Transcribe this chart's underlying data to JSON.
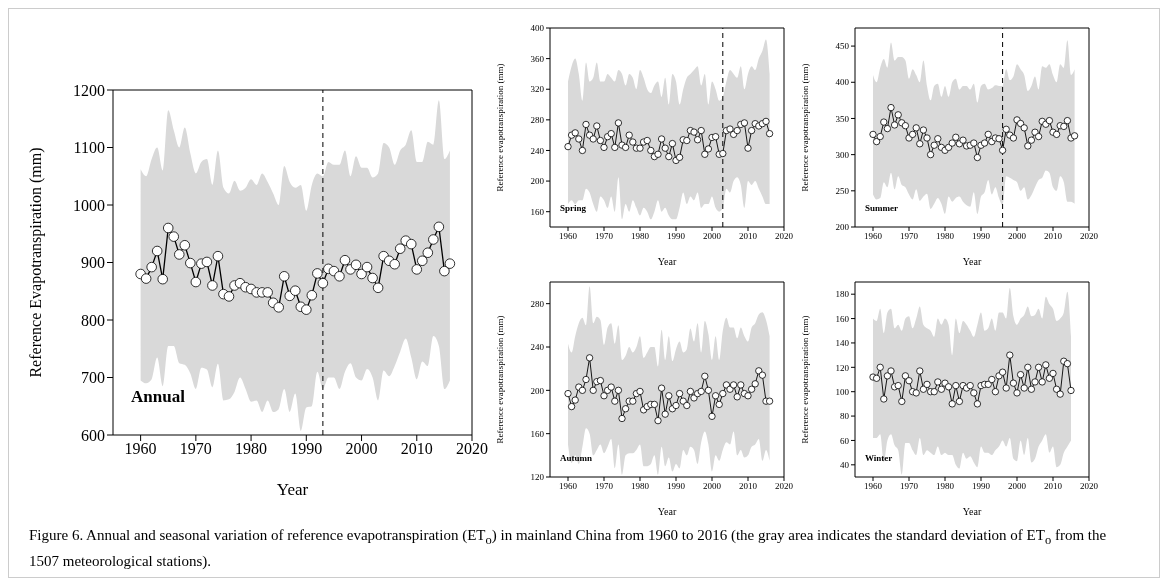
{
  "chart_data": [
    {
      "type": "line",
      "xlabel": "Year",
      "ylabel": "Reference Evapotranspiration (mm)",
      "xlim": [
        1955,
        2020
      ],
      "xticks": [
        1960,
        1970,
        1980,
        1990,
        2000,
        2010,
        2020
      ],
      "ylim": [
        600,
        1200
      ],
      "yticks": [
        600,
        700,
        800,
        900,
        1000,
        1100,
        1200
      ],
      "marker": "circle",
      "line_style": "solid",
      "annotations": [
        "Annual",
        "Figure 6. Annual and seasonal variation of reference evapotranspiration (ET$_{o}$) in mainland China from 1960 to 2016 (the gray area indicates the standard deviation of ET$_{o}$ from the 1507 meteorological stations)."
      ],
      "ref_lines": [
        {
          "axis": "x",
          "value": 1993,
          "line_style": "dashed",
          "color": "#000000"
        }
      ],
      "x": [
        1960,
        1961,
        1962,
        1963,
        1964,
        1965,
        1966,
        1967,
        1968,
        1969,
        1970,
        1971,
        1972,
        1973,
        1974,
        1975,
        1976,
        1977,
        1978,
        1979,
        1980,
        1981,
        1982,
        1983,
        1984,
        1985,
        1986,
        1987,
        1988,
        1989,
        1990,
        1991,
        1992,
        1993,
        1994,
        1995,
        1996,
        1997,
        1998,
        1999,
        2000,
        2001,
        2002,
        2003,
        2004,
        2005,
        2006,
        2007,
        2008,
        2009,
        2010,
        2011,
        2012,
        2013,
        2014,
        2015,
        2016
      ],
      "series": [
        {
          "color": "#000000",
          "values": [
            880,
            872,
            892,
            920,
            871,
            960,
            945,
            914,
            930,
            899,
            866,
            898,
            901,
            860,
            911,
            845,
            841,
            860,
            864,
            857,
            854,
            848,
            848,
            848,
            830,
            822,
            876,
            842,
            851,
            823,
            818,
            843,
            881,
            864,
            889,
            885,
            876,
            904,
            888,
            896,
            880,
            892,
            873,
            856,
            911,
            903,
            897,
            924,
            938,
            932,
            888,
            903,
            917,
            940,
            962,
            885,
            898
          ],
          "upper": [
            1062,
            1050,
            1080,
            1100,
            1060,
            1165,
            1130,
            1100,
            1135,
            1090,
            1055,
            1075,
            1080,
            1035,
            1095,
            1030,
            1020,
            1042,
            1025,
            1030,
            1045,
            1035,
            1055,
            1040,
            1020,
            1000,
            1068,
            1040,
            1030,
            1035,
            990,
            1035,
            1055,
            1050,
            1075,
            1070,
            1070,
            1095,
            1050,
            1085,
            1065,
            1065,
            1048,
            1055,
            1108,
            1100,
            1070,
            1095,
            1105,
            1130,
            1075,
            1075,
            1110,
            1105,
            1182,
            1080,
            1095
          ],
          "lower": [
            695,
            690,
            697,
            735,
            685,
            755,
            755,
            725,
            722,
            707,
            680,
            717,
            714,
            683,
            724,
            660,
            662,
            675,
            700,
            680,
            658,
            660,
            640,
            660,
            640,
            645,
            680,
            640,
            672,
            607,
            648,
            650,
            710,
            680,
            700,
            700,
            680,
            710,
            725,
            700,
            695,
            715,
            700,
            660,
            712,
            702,
            720,
            745,
            768,
            735,
            697,
            728,
            720,
            772,
            755,
            680,
            695
          ]
        }
      ]
    },
    {
      "type": "line",
      "xlabel": "Year",
      "ylabel": "Reference evapotranspiration (mm)",
      "xlim": [
        1955,
        2020
      ],
      "xticks": [
        1960,
        1970,
        1980,
        1990,
        2000,
        2010,
        2020
      ],
      "ylim": [
        140,
        400
      ],
      "yticks": [
        160,
        200,
        240,
        280,
        320,
        360,
        400
      ],
      "marker": "circle",
      "line_style": "solid",
      "annotations": [
        "Spring"
      ],
      "ref_lines": [
        {
          "axis": "x",
          "value": 2003,
          "line_style": "dashed",
          "color": "#000000"
        }
      ],
      "x": [
        1960,
        1961,
        1962,
        1963,
        1964,
        1965,
        1966,
        1967,
        1968,
        1969,
        1970,
        1971,
        1972,
        1973,
        1974,
        1975,
        1976,
        1977,
        1978,
        1979,
        1980,
        1981,
        1982,
        1983,
        1984,
        1985,
        1986,
        1987,
        1988,
        1989,
        1990,
        1991,
        1992,
        1993,
        1994,
        1995,
        1996,
        1997,
        1998,
        1999,
        2000,
        2001,
        2002,
        2003,
        2004,
        2005,
        2006,
        2007,
        2008,
        2009,
        2010,
        2011,
        2012,
        2013,
        2014,
        2015,
        2016
      ],
      "series": [
        {
          "color": "#000000",
          "values": [
            245,
            260,
            263,
            255,
            240,
            274,
            260,
            255,
            272,
            253,
            244,
            258,
            262,
            244,
            276,
            247,
            244,
            260,
            251,
            243,
            243,
            251,
            253,
            240,
            232,
            235,
            255,
            243,
            232,
            249,
            227,
            231,
            254,
            253,
            266,
            264,
            254,
            266,
            235,
            242,
            257,
            258,
            235,
            236,
            266,
            268,
            261,
            266,
            274,
            276,
            243,
            266,
            275,
            272,
            275,
            278,
            262
          ],
          "upper": [
            330,
            350,
            360,
            340,
            305,
            355,
            330,
            335,
            355,
            330,
            330,
            340,
            335,
            330,
            345,
            340,
            325,
            340,
            335,
            320,
            345,
            335,
            320,
            315,
            325,
            330,
            310,
            335,
            300,
            340,
            330,
            300,
            320,
            335,
            340,
            345,
            350,
            325,
            340,
            300,
            330,
            320,
            305,
            310,
            330,
            345,
            340,
            335,
            350,
            320,
            340,
            350,
            345,
            360,
            370,
            385,
            340
          ],
          "lower": [
            170,
            175,
            170,
            175,
            175,
            190,
            185,
            170,
            160,
            180,
            175,
            165,
            180,
            160,
            205,
            150,
            170,
            160,
            175,
            165,
            155,
            165,
            160,
            150,
            160,
            175,
            160,
            165,
            155,
            150,
            150,
            165,
            185,
            170,
            180,
            175,
            185,
            165,
            170,
            170,
            180,
            165,
            160,
            165,
            190,
            185,
            200,
            205,
            195,
            165,
            200,
            195,
            200,
            190,
            180,
            170,
            170
          ]
        }
      ]
    },
    {
      "type": "line",
      "xlabel": "Year",
      "ylabel": "Reference evapotranspiration (mm)",
      "xlim": [
        1955,
        2020
      ],
      "xticks": [
        1960,
        1970,
        1980,
        1990,
        2000,
        2010,
        2020
      ],
      "ylim": [
        200,
        475
      ],
      "yticks": [
        200,
        250,
        300,
        350,
        400,
        450
      ],
      "marker": "circle",
      "line_style": "solid",
      "annotations": [
        "Summer"
      ],
      "ref_lines": [
        {
          "axis": "x",
          "value": 1996,
          "line_style": "dashed",
          "color": "#000000"
        }
      ],
      "x": [
        1960,
        1961,
        1962,
        1963,
        1964,
        1965,
        1966,
        1967,
        1968,
        1969,
        1970,
        1971,
        1972,
        1973,
        1974,
        1975,
        1976,
        1977,
        1978,
        1979,
        1980,
        1981,
        1982,
        1983,
        1984,
        1985,
        1986,
        1987,
        1988,
        1989,
        1990,
        1991,
        1992,
        1993,
        1994,
        1995,
        1996,
        1997,
        1998,
        1999,
        2000,
        2001,
        2002,
        2003,
        2004,
        2005,
        2006,
        2007,
        2008,
        2009,
        2010,
        2011,
        2012,
        2013,
        2014,
        2015,
        2016
      ],
      "series": [
        {
          "color": "#000000",
          "values": [
            328,
            318,
            325,
            345,
            336,
            365,
            341,
            355,
            344,
            340,
            323,
            328,
            337,
            315,
            334,
            323,
            300,
            313,
            322,
            310,
            306,
            310,
            316,
            324,
            315,
            320,
            312,
            313,
            316,
            296,
            313,
            316,
            328,
            318,
            323,
            322,
            306,
            335,
            327,
            323,
            348,
            343,
            337,
            312,
            320,
            331,
            325,
            346,
            342,
            347,
            331,
            328,
            340,
            339,
            347,
            323,
            326
          ],
          "upper": [
            410,
            400,
            420,
            432,
            420,
            455,
            430,
            435,
            435,
            430,
            405,
            418,
            410,
            400,
            430,
            395,
            375,
            395,
            398,
            380,
            395,
            380,
            400,
            405,
            390,
            395,
            395,
            390,
            398,
            372,
            395,
            398,
            390,
            392,
            396,
            395,
            395,
            418,
            403,
            408,
            425,
            418,
            410,
            388,
            395,
            408,
            390,
            422,
            420,
            425,
            410,
            400,
            425,
            420,
            458,
            410,
            418
          ],
          "lower": [
            245,
            238,
            240,
            262,
            255,
            275,
            252,
            270,
            258,
            255,
            245,
            238,
            252,
            236,
            242,
            246,
            225,
            232,
            240,
            232,
            218,
            242,
            235,
            240,
            242,
            235,
            230,
            228,
            248,
            218,
            242,
            248,
            265,
            245,
            255,
            240,
            230,
            270,
            268,
            265,
            262,
            250,
            255,
            238,
            244,
            255,
            265,
            268,
            278,
            275,
            255,
            250,
            270,
            262,
            235,
            235,
            232
          ]
        }
      ]
    },
    {
      "type": "line",
      "xlabel": "Year",
      "ylabel": "Reference evapotranspiration (mm)",
      "xlim": [
        1955,
        2020
      ],
      "xticks": [
        1960,
        1970,
        1980,
        1990,
        2000,
        2010,
        2020
      ],
      "ylim": [
        120,
        300
      ],
      "yticks": [
        120,
        160,
        200,
        240,
        280
      ],
      "marker": "circle",
      "line_style": "solid",
      "annotations": [
        "Autumn"
      ],
      "x": [
        1960,
        1961,
        1962,
        1963,
        1964,
        1965,
        1966,
        1967,
        1968,
        1969,
        1970,
        1971,
        1972,
        1973,
        1974,
        1975,
        1976,
        1977,
        1978,
        1979,
        1980,
        1981,
        1982,
        1983,
        1984,
        1985,
        1986,
        1987,
        1988,
        1989,
        1990,
        1991,
        1992,
        1993,
        1994,
        1995,
        1996,
        1997,
        1998,
        1999,
        2000,
        2001,
        2002,
        2003,
        2004,
        2005,
        2006,
        2007,
        2008,
        2009,
        2010,
        2011,
        2012,
        2013,
        2014,
        2015,
        2016
      ],
      "series": [
        {
          "color": "#000000",
          "values": [
            197,
            185,
            191,
            203,
            200,
            210,
            230,
            200,
            208,
            209,
            195,
            200,
            203,
            190,
            200,
            174,
            183,
            190,
            190,
            197,
            199,
            182,
            185,
            187,
            187,
            172,
            202,
            178,
            195,
            183,
            186,
            197,
            190,
            186,
            199,
            193,
            197,
            199,
            213,
            200,
            176,
            195,
            187,
            197,
            205,
            201,
            205,
            194,
            205,
            197,
            195,
            201,
            206,
            218,
            214,
            190,
            190
          ],
          "upper": [
            243,
            235,
            250,
            262,
            267,
            260,
            296,
            262,
            268,
            265,
            242,
            258,
            262,
            243,
            260,
            228,
            232,
            240,
            235,
            240,
            250,
            230,
            235,
            240,
            240,
            222,
            256,
            228,
            250,
            227,
            238,
            245,
            235,
            238,
            257,
            245,
            262,
            235,
            264,
            252,
            228,
            250,
            228,
            255,
            267,
            258,
            258,
            248,
            258,
            250,
            245,
            258,
            262,
            270,
            272,
            265,
            250
          ],
          "lower": [
            150,
            133,
            140,
            132,
            148,
            165,
            160,
            140,
            145,
            150,
            142,
            148,
            155,
            128,
            150,
            122,
            140,
            142,
            142,
            145,
            150,
            130,
            130,
            132,
            140,
            122,
            148,
            130,
            138,
            125,
            132,
            128,
            145,
            140,
            148,
            145,
            132,
            152,
            162,
            150,
            125,
            140,
            135,
            145,
            152,
            150,
            162,
            140,
            145,
            138,
            140,
            148,
            150,
            155,
            135,
            145,
            135
          ]
        }
      ]
    },
    {
      "type": "line",
      "xlabel": "Year",
      "ylabel": "Reference evapotranspiration (mm)",
      "xlim": [
        1955,
        2020
      ],
      "xticks": [
        1960,
        1970,
        1980,
        1990,
        2000,
        2010,
        2020
      ],
      "ylim": [
        30,
        190
      ],
      "yticks": [
        40,
        60,
        80,
        100,
        120,
        140,
        160,
        180
      ],
      "marker": "circle",
      "line_style": "solid",
      "annotations": [
        "Winter"
      ],
      "x": [
        1960,
        1961,
        1962,
        1963,
        1964,
        1965,
        1966,
        1967,
        1968,
        1969,
        1970,
        1971,
        1972,
        1973,
        1974,
        1975,
        1976,
        1977,
        1978,
        1979,
        1980,
        1981,
        1982,
        1983,
        1984,
        1985,
        1986,
        1987,
        1988,
        1989,
        1990,
        1991,
        1992,
        1993,
        1994,
        1995,
        1996,
        1997,
        1998,
        1999,
        2000,
        2001,
        2002,
        2003,
        2004,
        2005,
        2006,
        2007,
        2008,
        2009,
        2010,
        2011,
        2012,
        2013,
        2014,
        2015
      ],
      "series": [
        {
          "color": "#000000",
          "values": [
            112,
            111,
            120,
            94,
            113,
            117,
            104,
            105,
            92,
            113,
            109,
            100,
            99,
            117,
            102,
            106,
            100,
            100,
            108,
            102,
            107,
            104,
            90,
            105,
            92,
            105,
            103,
            105,
            99,
            90,
            105,
            106,
            106,
            110,
            100,
            113,
            116,
            103,
            130,
            107,
            99,
            114,
            103,
            120,
            102,
            108,
            120,
            108,
            122,
            111,
            115,
            102,
            98,
            125,
            123,
            101
          ],
          "upper": [
            160,
            158,
            168,
            148,
            165,
            168,
            152,
            155,
            150,
            160,
            162,
            152,
            160,
            170,
            155,
            152,
            150,
            145,
            160,
            155,
            160,
            155,
            130,
            160,
            148,
            158,
            155,
            150,
            145,
            155,
            165,
            150,
            152,
            160,
            150,
            165,
            165,
            160,
            185,
            162,
            155,
            160,
            163,
            170,
            162,
            163,
            168,
            160,
            178,
            172,
            168,
            158,
            160,
            165,
            182,
            145
          ],
          "lower": [
            62,
            62,
            65,
            42,
            60,
            65,
            56,
            52,
            32,
            58,
            58,
            52,
            48,
            62,
            48,
            52,
            50,
            48,
            55,
            48,
            50,
            48,
            48,
            40,
            37,
            50,
            45,
            47,
            42,
            38,
            55,
            50,
            50,
            48,
            52,
            55,
            60,
            55,
            62,
            45,
            43,
            60,
            48,
            62,
            42,
            45,
            55,
            60,
            65,
            50,
            55,
            38,
            40,
            50,
            55,
            60
          ]
        }
      ]
    }
  ]
}
